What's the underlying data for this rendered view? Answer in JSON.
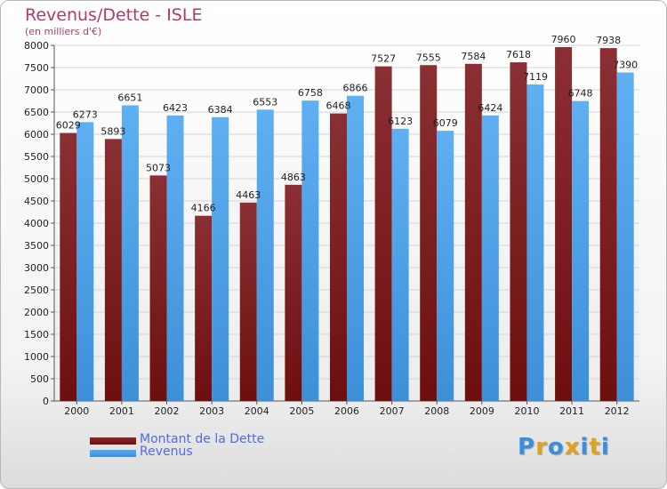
{
  "header": {
    "title": "Revenus/Dette - ISLE",
    "subtitle": "(en milliers d'€)"
  },
  "legend": {
    "debt_label": "Montant de la Dette",
    "revenue_label": "Revenus"
  },
  "logo": {
    "text": "Proxiti",
    "letters": [
      {
        "char": "P",
        "color": "#3a8fd8"
      },
      {
        "char": "r",
        "color": "#e0a21b"
      },
      {
        "char": "o",
        "color": "#3a8fd8"
      },
      {
        "char": "x",
        "color": "#e0a21b"
      },
      {
        "char": "i",
        "color": "#3a8fd8"
      },
      {
        "char": "t",
        "color": "#e0a21b"
      },
      {
        "char": "i",
        "color": "#3a8fd8"
      }
    ]
  },
  "colors": {
    "debt": "#6d0f0f",
    "revenue": "#3d8fd8",
    "title": "#b03a6a",
    "legend_text": "#4f6ce0"
  },
  "chart_data": {
    "type": "bar",
    "title": "Revenus/Dette - ISLE",
    "subtitle": "(en milliers d'€)",
    "categories": [
      "2000",
      "2001",
      "2002",
      "2003",
      "2004",
      "2005",
      "2006",
      "2007",
      "2008",
      "2009",
      "2010",
      "2011",
      "2012"
    ],
    "series": [
      {
        "name": "Montant de la Dette",
        "values": [
          6029,
          5893,
          5073,
          4166,
          4463,
          4863,
          6468,
          7527,
          7555,
          7584,
          7618,
          7960,
          7938
        ]
      },
      {
        "name": "Revenus",
        "values": [
          6273,
          6651,
          6423,
          6384,
          6553,
          6758,
          6866,
          6123,
          6079,
          6424,
          7119,
          6748,
          7390
        ]
      }
    ],
    "yticks": [
      0,
      500,
      1000,
      1500,
      2000,
      2500,
      3000,
      3500,
      4000,
      4500,
      5000,
      5500,
      6000,
      6500,
      7000,
      7500,
      8000
    ],
    "ylim": [
      0,
      8000
    ],
    "grid": true,
    "legend_position": "bottom-left"
  }
}
